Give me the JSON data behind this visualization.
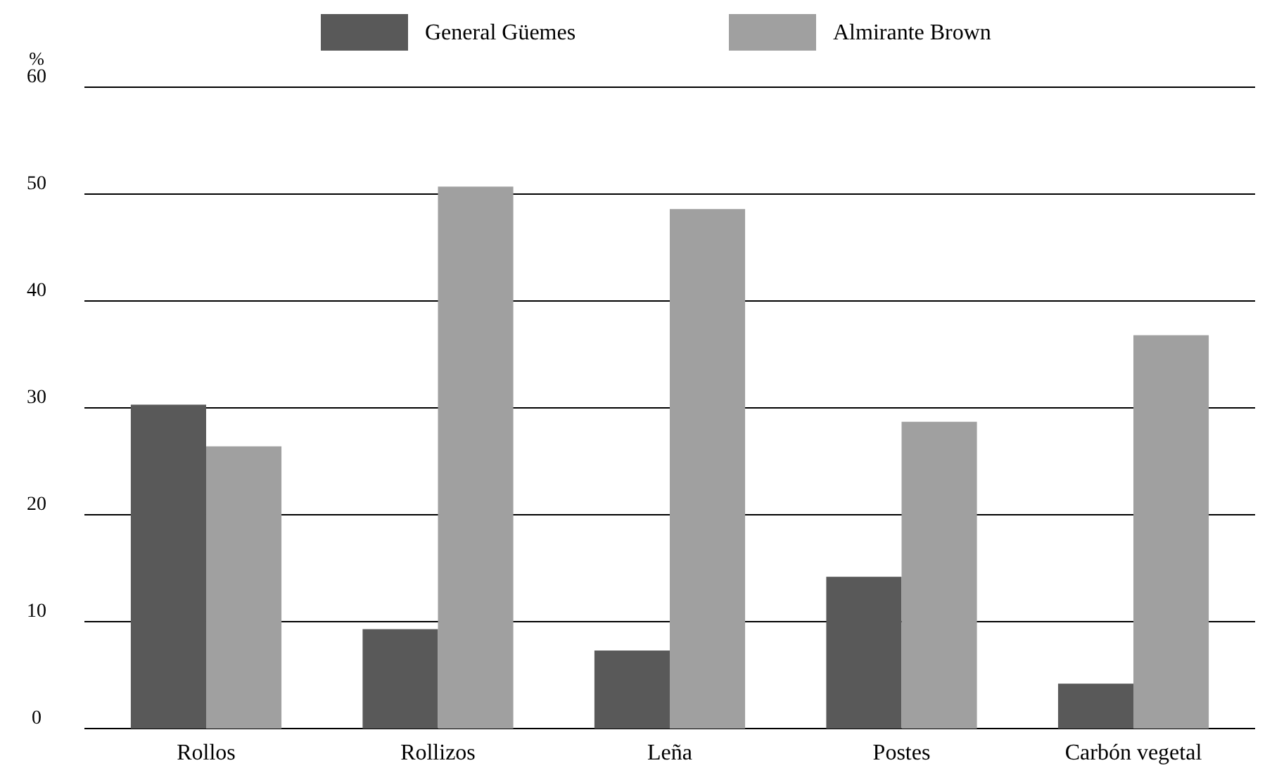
{
  "chart_data": {
    "type": "bar",
    "ylabel": "%",
    "categories": [
      "Rollos",
      "Rollizos",
      "Leña",
      "Postes",
      "Carbón vegetal"
    ],
    "series": [
      {
        "name": "General Güemes",
        "color": "#595959",
        "values": [
          30.3,
          9.3,
          7.3,
          14.2,
          4.2
        ]
      },
      {
        "name": "Almirante Brown",
        "color": "#a0a0a0",
        "values": [
          26.4,
          50.7,
          48.6,
          28.7,
          36.8
        ]
      }
    ],
    "ylim": [
      0,
      60
    ],
    "yticks": [
      0,
      10,
      20,
      30,
      40,
      50,
      60
    ],
    "grid": "y",
    "legend": "top"
  }
}
